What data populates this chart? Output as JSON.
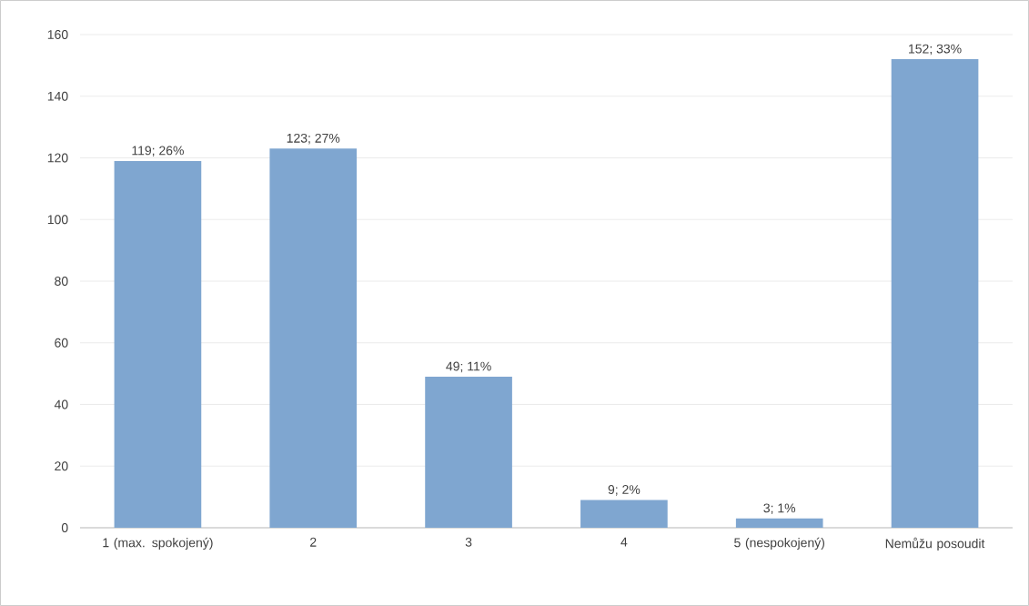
{
  "chart_data": {
    "type": "bar",
    "categories": [
      "1 (max. spokojený)",
      "2",
      "3",
      "4",
      "5 (nespokojený)",
      "Nemůžu posoudit"
    ],
    "values": [
      119,
      123,
      49,
      9,
      3,
      152
    ],
    "value_labels": [
      "119; 26%",
      "123; 27%",
      "49; 11%",
      "9; 2%",
      "3; 1%",
      "152; 33%"
    ],
    "color": "#7fa6d0",
    "ylim": [
      0,
      160
    ],
    "yticks": [
      0,
      20,
      40,
      60,
      80,
      100,
      120,
      140,
      160
    ],
    "grid": "y"
  }
}
